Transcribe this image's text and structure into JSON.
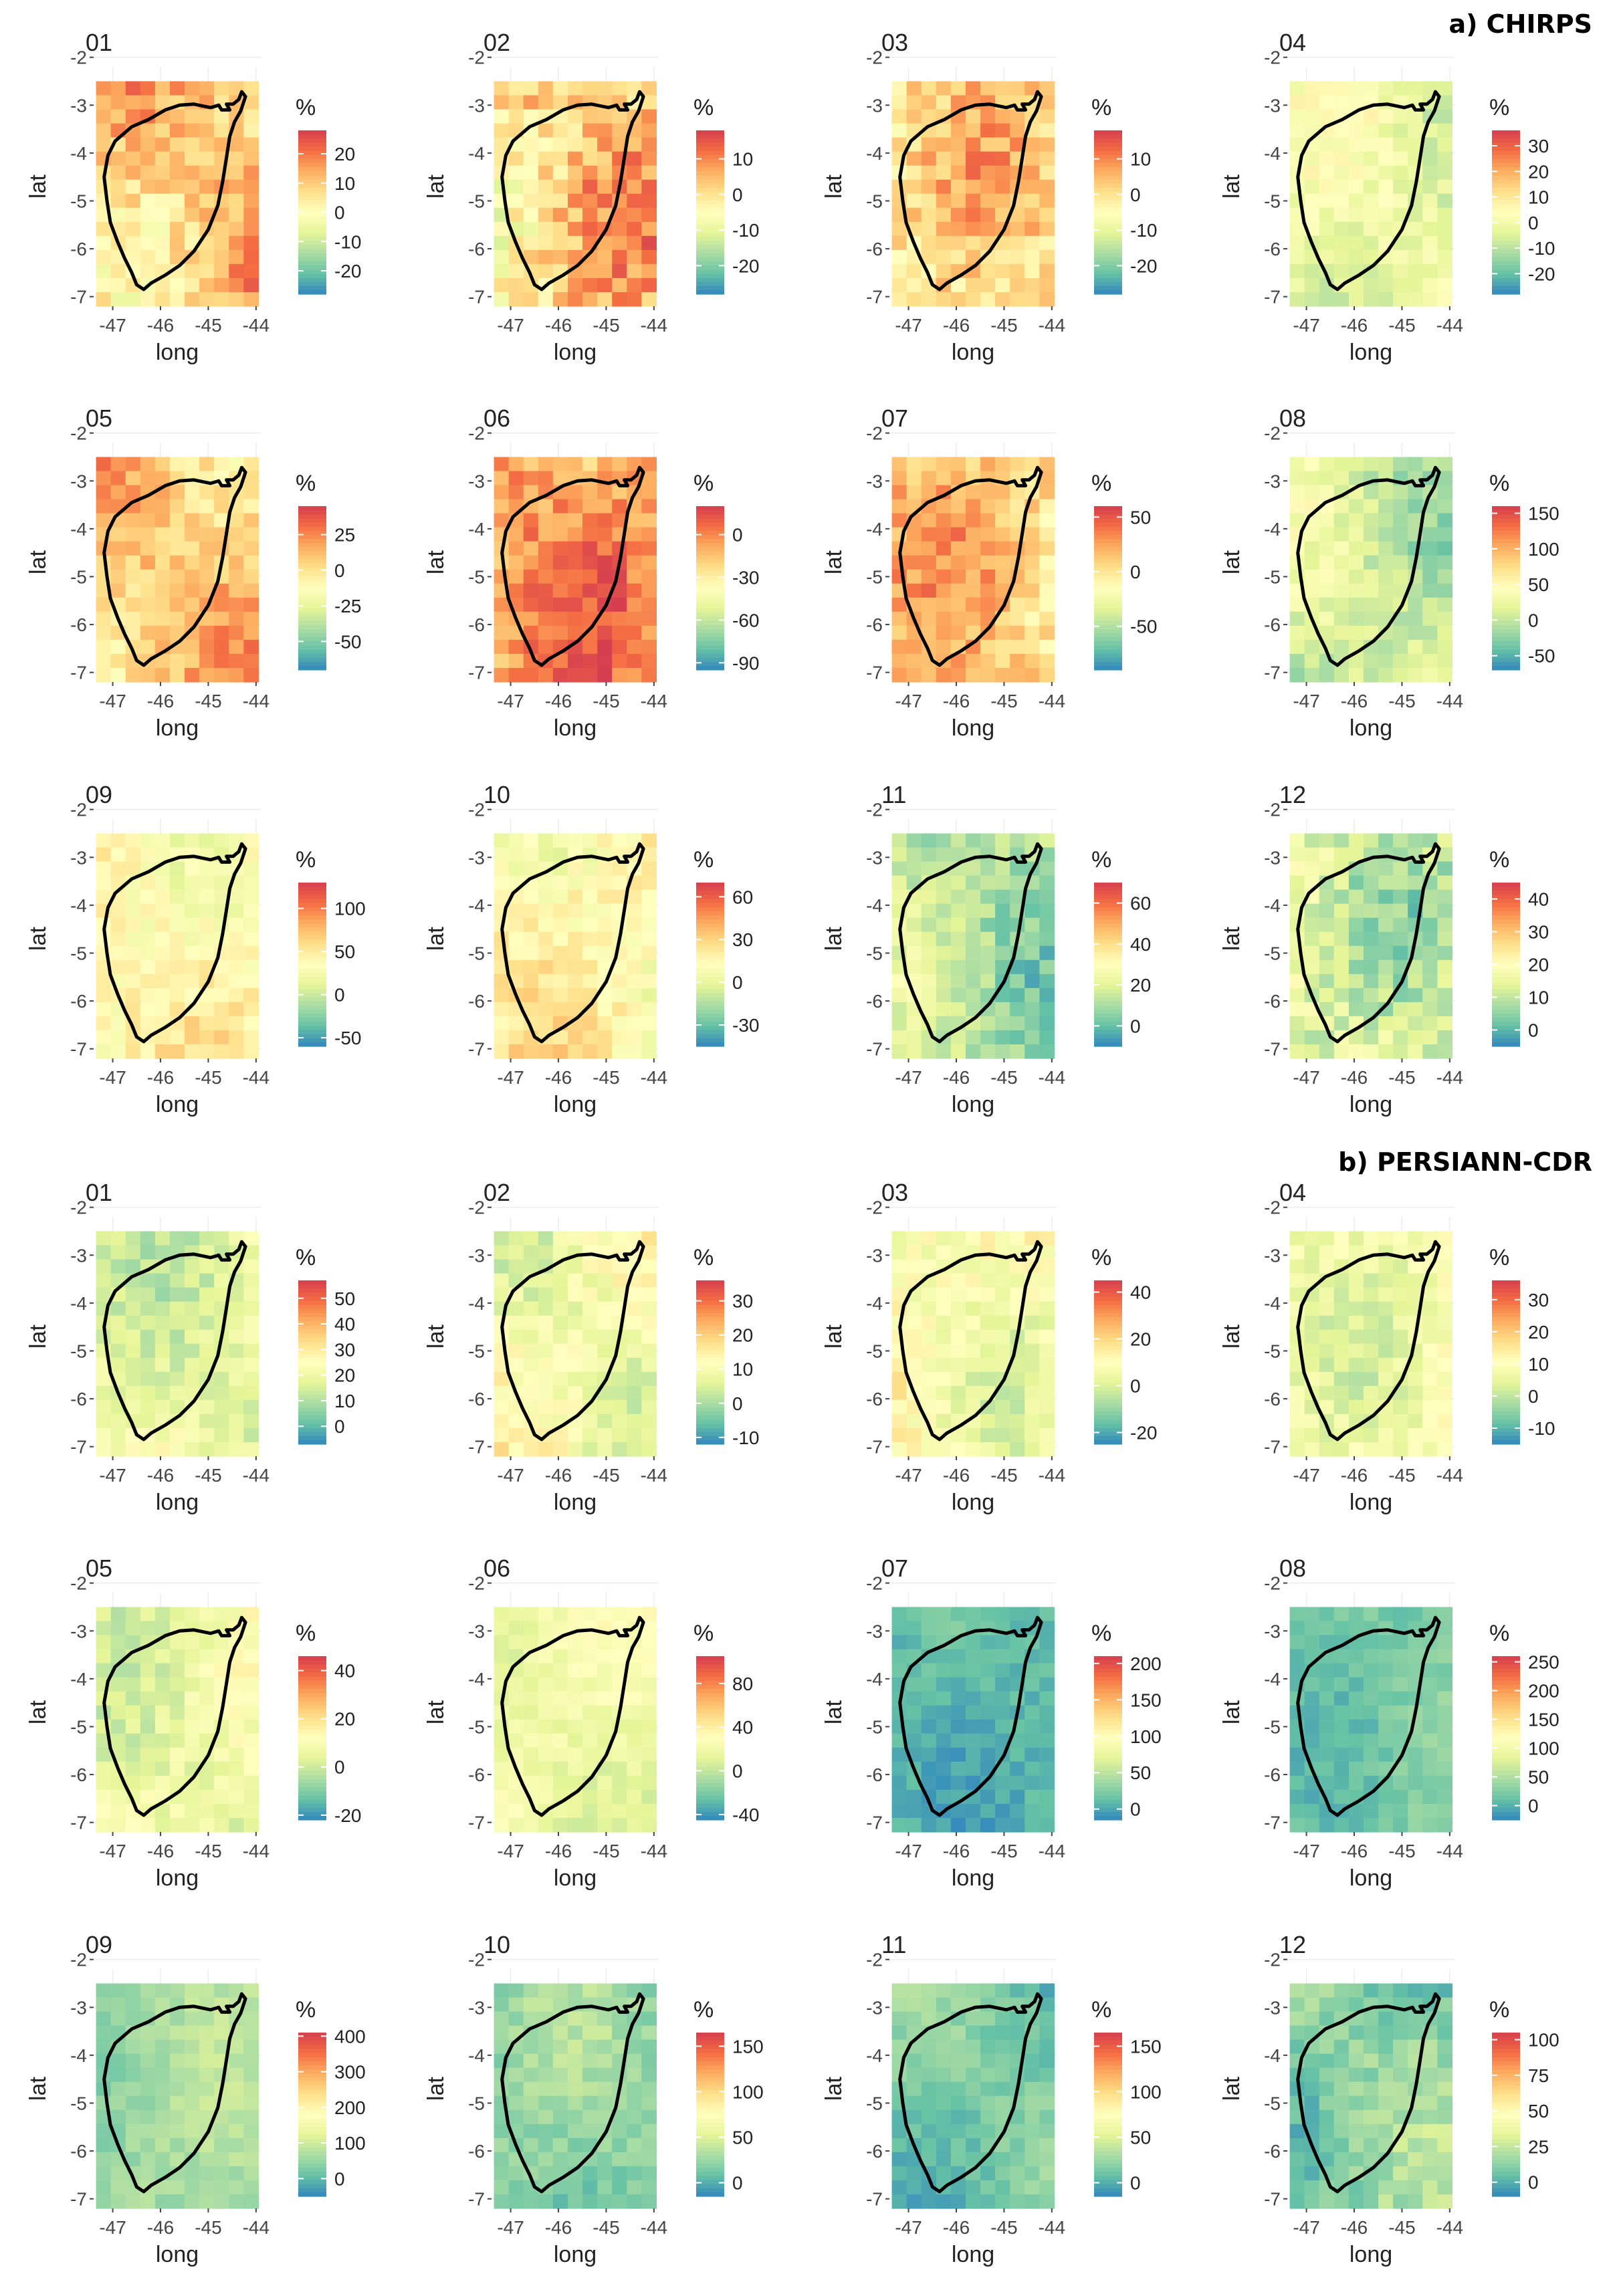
{
  "sections": {
    "a": {
      "title": "a) CHIRPS"
    },
    "b": {
      "title": "b) PERSIANN-CDR"
    }
  },
  "axis": {
    "xlabel": "long",
    "ylabel": "lat",
    "xticks": [
      "-47",
      "-46",
      "-45",
      "-44"
    ],
    "yticks": [
      "-2",
      "-3",
      "-4",
      "-5",
      "-6",
      "-7"
    ],
    "xlim": [
      -47.4,
      -43.9
    ],
    "ylim": [
      -7.2,
      -2.2
    ]
  },
  "legend_unit": "%",
  "palette": [
    "#3288bd",
    "#66c2a5",
    "#abdda4",
    "#e6f598",
    "#ffffbf",
    "#fee08b",
    "#fdae61",
    "#f46d43",
    "#d53e4f"
  ],
  "chart_data": [
    {
      "type": "heatmap",
      "dataset": "CHIRPS",
      "month": "01",
      "legend_ticks": [
        "20",
        "10",
        "0",
        "-10",
        "-20"
      ],
      "legend_values": [
        20,
        10,
        0,
        -10,
        -20
      ],
      "range": [
        -28,
        28
      ],
      "base": 10,
      "amp": 8,
      "seed": 1
    },
    {
      "type": "heatmap",
      "dataset": "CHIRPS",
      "month": "02",
      "legend_ticks": [
        "10",
        "0",
        "-10",
        "-20"
      ],
      "legend_values": [
        10,
        0,
        -10,
        -20
      ],
      "range": [
        -28,
        18
      ],
      "base": 2,
      "amp": 8,
      "seed": 2
    },
    {
      "type": "heatmap",
      "dataset": "CHIRPS",
      "month": "03",
      "legend_ticks": [
        "10",
        "0",
        "-10",
        "-20"
      ],
      "legend_values": [
        10,
        0,
        -10,
        -20
      ],
      "range": [
        -28,
        18
      ],
      "base": 0,
      "amp": 7,
      "seed": 3
    },
    {
      "type": "heatmap",
      "dataset": "CHIRPS",
      "month": "04",
      "legend_ticks": [
        "30",
        "20",
        "10",
        "0",
        "-10",
        "-20"
      ],
      "legend_values": [
        30,
        20,
        10,
        0,
        -10,
        -20
      ],
      "range": [
        -28,
        36
      ],
      "base": -2,
      "amp": 6,
      "seed": 4
    },
    {
      "type": "heatmap",
      "dataset": "CHIRPS",
      "month": "05",
      "legend_ticks": [
        "25",
        "0",
        "-25",
        "-50"
      ],
      "legend_values": [
        25,
        0,
        -25,
        -50
      ],
      "range": [
        -70,
        45
      ],
      "base": 8,
      "amp": 14,
      "seed": 5
    },
    {
      "type": "heatmap",
      "dataset": "CHIRPS",
      "month": "06",
      "legend_ticks": [
        "0",
        "-30",
        "-60",
        "-90"
      ],
      "legend_values": [
        0,
        -30,
        -60,
        -90
      ],
      "range": [
        -95,
        20
      ],
      "base": -5,
      "amp": 15,
      "seed": 6
    },
    {
      "type": "heatmap",
      "dataset": "CHIRPS",
      "month": "07",
      "legend_ticks": [
        "50",
        "0",
        "-50"
      ],
      "legend_values": [
        50,
        0,
        -50
      ],
      "range": [
        -90,
        60
      ],
      "base": 10,
      "amp": 20,
      "seed": 7
    },
    {
      "type": "heatmap",
      "dataset": "CHIRPS",
      "month": "08",
      "legend_ticks": [
        "150",
        "100",
        "50",
        "0",
        "-50"
      ],
      "legend_values": [
        150,
        100,
        50,
        0,
        -50
      ],
      "range": [
        -70,
        160
      ],
      "base": 8,
      "amp": 25,
      "seed": 8
    },
    {
      "type": "heatmap",
      "dataset": "CHIRPS",
      "month": "09",
      "legend_ticks": [
        "100",
        "50",
        "0",
        "-50"
      ],
      "legend_values": [
        100,
        50,
        0,
        -50
      ],
      "range": [
        -60,
        130
      ],
      "base": 40,
      "amp": 18,
      "seed": 9
    },
    {
      "type": "heatmap",
      "dataset": "CHIRPS",
      "month": "10",
      "legend_ticks": [
        "60",
        "30",
        "0",
        "-30"
      ],
      "legend_values": [
        60,
        30,
        0,
        -30
      ],
      "range": [
        -45,
        70
      ],
      "base": 15,
      "amp": 12,
      "seed": 10
    },
    {
      "type": "heatmap",
      "dataset": "CHIRPS",
      "month": "11",
      "legend_ticks": [
        "60",
        "40",
        "20",
        "0"
      ],
      "legend_values": [
        60,
        40,
        20,
        0
      ],
      "range": [
        -10,
        70
      ],
      "base": 12,
      "amp": 9,
      "seed": 11
    },
    {
      "type": "heatmap",
      "dataset": "CHIRPS",
      "month": "12",
      "legend_ticks": [
        "40",
        "30",
        "20",
        "10",
        "0"
      ],
      "legend_values": [
        40,
        30,
        20,
        10,
        0
      ],
      "range": [
        -5,
        45
      ],
      "base": 13,
      "amp": 7,
      "seed": 12
    },
    {
      "type": "heatmap",
      "dataset": "PERSIANN-CDR",
      "month": "01",
      "legend_ticks": [
        "50",
        "40",
        "30",
        "20",
        "10",
        "0"
      ],
      "legend_values": [
        50,
        40,
        30,
        20,
        10,
        0
      ],
      "range": [
        -7,
        57
      ],
      "base": 18,
      "amp": 6,
      "seed": 13
    },
    {
      "type": "heatmap",
      "dataset": "PERSIANN-CDR",
      "month": "02",
      "legend_ticks": [
        "30",
        "20",
        "10",
        "0",
        "-10"
      ],
      "legend_values": [
        30,
        20,
        10,
        0,
        -10
      ],
      "range": [
        -12,
        36
      ],
      "base": 9,
      "amp": 5,
      "seed": 14
    },
    {
      "type": "heatmap",
      "dataset": "PERSIANN-CDR",
      "month": "03",
      "legend_ticks": [
        "40",
        "20",
        "0",
        "-20"
      ],
      "legend_values": [
        40,
        20,
        0,
        -20
      ],
      "range": [
        -25,
        45
      ],
      "base": 8,
      "amp": 7,
      "seed": 15
    },
    {
      "type": "heatmap",
      "dataset": "PERSIANN-CDR",
      "month": "04",
      "legend_ticks": [
        "30",
        "20",
        "10",
        "0",
        "-10"
      ],
      "legend_values": [
        30,
        20,
        10,
        0,
        -10
      ],
      "range": [
        -15,
        36
      ],
      "base": 8,
      "amp": 5,
      "seed": 16
    },
    {
      "type": "heatmap",
      "dataset": "PERSIANN-CDR",
      "month": "05",
      "legend_ticks": [
        "40",
        "20",
        "0",
        "-20"
      ],
      "legend_values": [
        40,
        20,
        0,
        -20
      ],
      "range": [
        -22,
        46
      ],
      "base": 6,
      "amp": 6,
      "seed": 17
    },
    {
      "type": "heatmap",
      "dataset": "PERSIANN-CDR",
      "month": "06",
      "legend_ticks": [
        "80",
        "40",
        "0",
        "-40"
      ],
      "legend_values": [
        80,
        40,
        0,
        -40
      ],
      "range": [
        -45,
        105
      ],
      "base": 18,
      "amp": 10,
      "seed": 18
    },
    {
      "type": "heatmap",
      "dataset": "PERSIANN-CDR",
      "month": "07",
      "legend_ticks": [
        "200",
        "150",
        "100",
        "50",
        "0"
      ],
      "legend_values": [
        200,
        150,
        100,
        50,
        0
      ],
      "range": [
        -15,
        210
      ],
      "base": 10,
      "amp": 12,
      "seed": 19
    },
    {
      "type": "heatmap",
      "dataset": "PERSIANN-CDR",
      "month": "08",
      "legend_ticks": [
        "250",
        "200",
        "150",
        "100",
        "50",
        "0"
      ],
      "legend_values": [
        250,
        200,
        150,
        100,
        50,
        0
      ],
      "range": [
        -25,
        260
      ],
      "base": 20,
      "amp": 15,
      "seed": 20
    },
    {
      "type": "heatmap",
      "dataset": "PERSIANN-CDR",
      "month": "09",
      "legend_ticks": [
        "400",
        "300",
        "200",
        "100",
        "0"
      ],
      "legend_values": [
        400,
        300,
        200,
        100,
        0
      ],
      "range": [
        -50,
        410
      ],
      "base": 60,
      "amp": 25,
      "seed": 21
    },
    {
      "type": "heatmap",
      "dataset": "PERSIANN-CDR",
      "month": "10",
      "legend_ticks": [
        "150",
        "100",
        "50",
        "0"
      ],
      "legend_values": [
        150,
        100,
        50,
        0
      ],
      "range": [
        -15,
        165
      ],
      "base": 22,
      "amp": 12,
      "seed": 22
    },
    {
      "type": "heatmap",
      "dataset": "PERSIANN-CDR",
      "month": "11",
      "legend_ticks": [
        "150",
        "100",
        "50",
        "0"
      ],
      "legend_values": [
        150,
        100,
        50,
        0
      ],
      "range": [
        -15,
        165
      ],
      "base": 15,
      "amp": 12,
      "seed": 23
    },
    {
      "type": "heatmap",
      "dataset": "PERSIANN-CDR",
      "month": "12",
      "legend_ticks": [
        "100",
        "75",
        "50",
        "25",
        "0"
      ],
      "legend_values": [
        100,
        75,
        50,
        25,
        0
      ],
      "range": [
        -10,
        105
      ],
      "base": 12,
      "amp": 10,
      "seed": 24
    }
  ]
}
